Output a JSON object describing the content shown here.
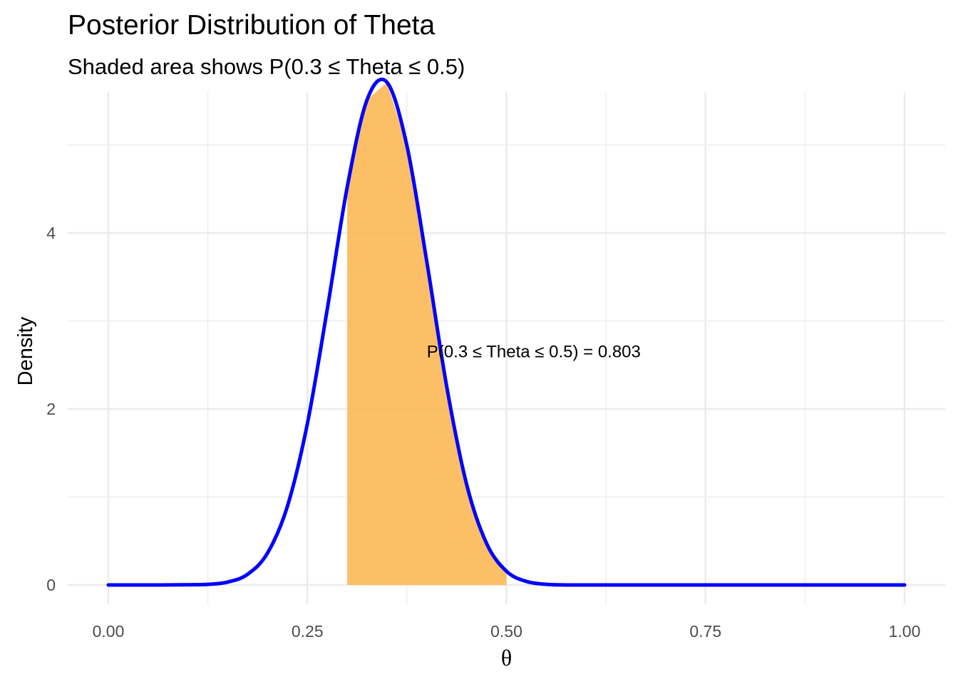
{
  "chart_data": {
    "type": "area",
    "title": "Posterior Distribution of Theta",
    "subtitle": "Shaded area shows P(0.3 ≤ Theta ≤ 0.5)",
    "xlabel": "θ",
    "ylabel": "Density",
    "xlim": [
      0,
      1
    ],
    "ylim": [
      0,
      5.3
    ],
    "x_ticks": [
      0,
      0.25,
      0.5,
      0.75,
      1
    ],
    "x_tick_labels": [
      "0.00",
      "0.25",
      "0.50",
      "0.75",
      "1.00"
    ],
    "y_ticks": [
      0,
      2,
      4
    ],
    "y_tick_labels": [
      "0",
      "2",
      "4"
    ],
    "grid": true,
    "series": [
      {
        "kind": "density-curve",
        "color": "#0000ff",
        "x": [
          0.0,
          0.05,
          0.1,
          0.125,
          0.15,
          0.175,
          0.2,
          0.225,
          0.25,
          0.275,
          0.3,
          0.325,
          0.35,
          0.375,
          0.4,
          0.425,
          0.45,
          0.475,
          0.5,
          0.525,
          0.55,
          0.575,
          0.6,
          0.625,
          0.65,
          0.7,
          0.75,
          0.8,
          0.9,
          1.0
        ],
        "y": [
          0.0,
          0.0,
          0.002,
          0.007,
          0.033,
          0.122,
          0.364,
          0.897,
          1.834,
          3.136,
          4.521,
          5.515,
          5.712,
          4.992,
          3.673,
          2.254,
          1.143,
          0.473,
          0.156,
          0.04,
          0.007,
          0.0,
          0.0,
          0.0,
          0.0,
          0.0,
          0.0,
          0.0,
          0.0,
          0.0
        ]
      }
    ],
    "shaded_region": {
      "from": 0.3,
      "to": 0.5,
      "color": "#fdb44b",
      "probability": 0.803
    },
    "annotation": {
      "text": "P(0.3 ≤ Theta ≤ 0.5) = 0.803",
      "x": 0.4,
      "y": 2.65
    }
  }
}
